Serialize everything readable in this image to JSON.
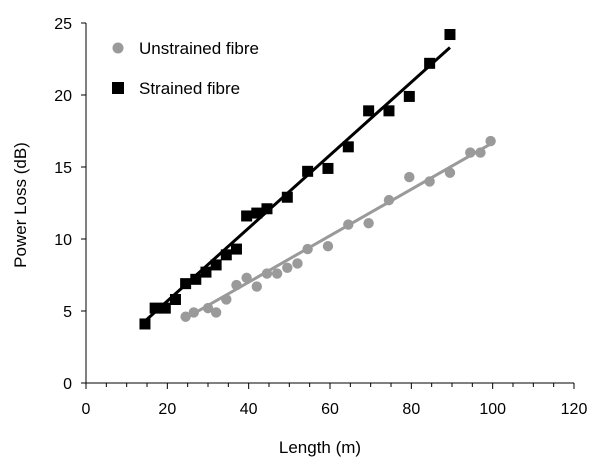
{
  "chart_data": {
    "type": "scatter",
    "title": "",
    "xlabel": "Length (m)",
    "ylabel": "Power Loss (dB)",
    "xlim": [
      0,
      120
    ],
    "ylim": [
      0,
      25
    ],
    "xticks": [
      0,
      20,
      40,
      60,
      80,
      100,
      120
    ],
    "yticks": [
      0,
      5,
      10,
      15,
      20,
      25
    ],
    "x_minor_step": 5,
    "grid": false,
    "legend_position": "top-left",
    "series": [
      {
        "name": "Unstrained fibre",
        "marker": "circle",
        "color": "#9a9a9a",
        "points": [
          [
            24.5,
            4.6
          ],
          [
            26.5,
            4.9
          ],
          [
            30,
            5.2
          ],
          [
            32,
            4.9
          ],
          [
            34.5,
            5.8
          ],
          [
            37,
            6.8
          ],
          [
            39.5,
            7.3
          ],
          [
            42,
            6.7
          ],
          [
            44.5,
            7.6
          ],
          [
            47,
            7.6
          ],
          [
            49.5,
            8.0
          ],
          [
            52,
            8.3
          ],
          [
            54.5,
            9.3
          ],
          [
            59.5,
            9.5
          ],
          [
            64.5,
            11.0
          ],
          [
            69.5,
            11.1
          ],
          [
            74.5,
            12.7
          ],
          [
            79.5,
            14.3
          ],
          [
            84.5,
            14.0
          ],
          [
            89.5,
            14.6
          ],
          [
            94.5,
            16.0
          ],
          [
            97,
            16.0
          ],
          [
            99.5,
            16.8
          ]
        ],
        "fit": [
          [
            24.5,
            4.5
          ],
          [
            99.5,
            16.6
          ]
        ]
      },
      {
        "name": "Strained fibre",
        "marker": "square",
        "color": "#000000",
        "points": [
          [
            14.5,
            4.1
          ],
          [
            17,
            5.2
          ],
          [
            19.5,
            5.2
          ],
          [
            22,
            5.8
          ],
          [
            24.5,
            6.9
          ],
          [
            27,
            7.2
          ],
          [
            29.5,
            7.7
          ],
          [
            32,
            8.2
          ],
          [
            34.5,
            8.9
          ],
          [
            37,
            9.3
          ],
          [
            39.5,
            11.6
          ],
          [
            42,
            11.8
          ],
          [
            44.5,
            12.1
          ],
          [
            49.5,
            12.9
          ],
          [
            54.5,
            14.7
          ],
          [
            59.5,
            14.9
          ],
          [
            64.5,
            16.4
          ],
          [
            69.5,
            18.9
          ],
          [
            74.5,
            18.9
          ],
          [
            79.5,
            19.9
          ],
          [
            84.5,
            22.2
          ],
          [
            89.5,
            24.2
          ]
        ],
        "fit": [
          [
            14.5,
            4.3
          ],
          [
            89.5,
            23.3
          ]
        ]
      }
    ]
  }
}
